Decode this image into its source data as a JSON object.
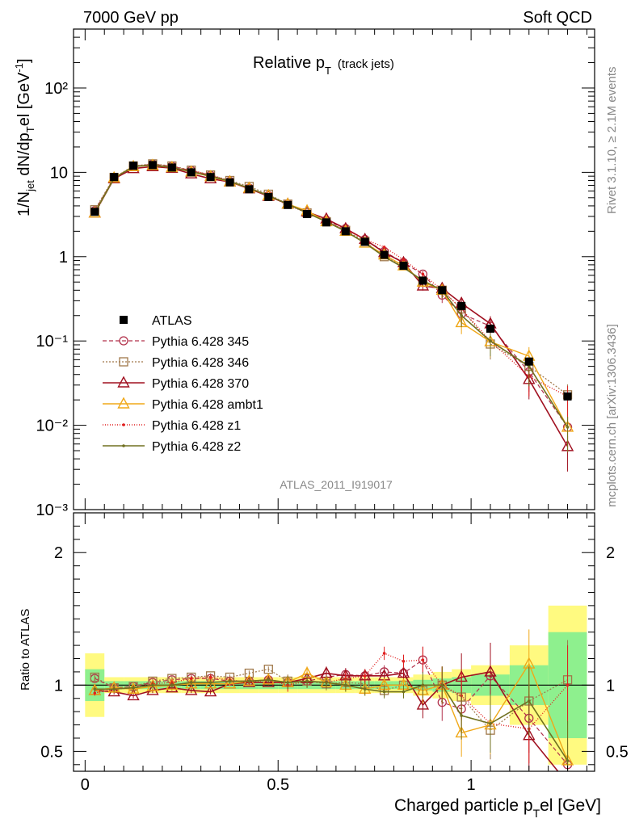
{
  "header": {
    "left": "7000 GeV pp",
    "right": "Soft QCD"
  },
  "side_text": {
    "rivet": "Rivet 3.1.10, ≥ 2.1M events",
    "mcplots": "mcplots.cern.ch [arXiv:1306.3436]"
  },
  "colors": {
    "atlas": "#000000",
    "p345": "#b2324c",
    "p346": "#a0784a",
    "p370": "#a01020",
    "ambt1": "#f0a818",
    "z1": "#e02020",
    "z2": "#707020",
    "band_inner": "#8ef08e",
    "band_outer": "#fffa80"
  },
  "chart_data": [
    {
      "type": "line",
      "title": "Relative p",
      "title_sub": "T",
      "title_suffix": "(track jets)",
      "ylabel_parts": [
        "1/N",
        "jet",
        " dN/dp",
        "T",
        "el [GeV",
        "-1",
        "]"
      ],
      "yscale": "log",
      "ylim": [
        0.001,
        500
      ],
      "xlim": [
        -0.03,
        1.32
      ],
      "ytick_labels": [
        "10⁻³",
        "10⁻²",
        "10⁻¹",
        "1",
        "10",
        "10²"
      ],
      "analysis_label": "ATLAS_2011_I919017",
      "legend_position": "center-left",
      "x": [
        0.025,
        0.075,
        0.125,
        0.175,
        0.225,
        0.275,
        0.325,
        0.375,
        0.425,
        0.475,
        0.525,
        0.575,
        0.625,
        0.675,
        0.725,
        0.775,
        0.825,
        0.875,
        0.925,
        0.975,
        1.05,
        1.15,
        1.25
      ],
      "series": [
        {
          "key": "atlas",
          "name": "ATLAS",
          "values": [
            3.4,
            8.8,
            12.0,
            12.2,
            11.4,
            10.0,
            8.8,
            7.6,
            6.3,
            5.1,
            4.1,
            3.2,
            2.55,
            2.0,
            1.5,
            1.05,
            0.78,
            0.52,
            0.4,
            0.26,
            0.14,
            0.057,
            0.022
          ]
        },
        {
          "key": "p345",
          "name": "Pythia 6.428 345",
          "values": [
            3.5,
            8.6,
            11.8,
            12.5,
            11.8,
            10.5,
            9.2,
            7.8,
            6.5,
            5.3,
            4.2,
            3.3,
            2.7,
            2.15,
            1.6,
            1.15,
            0.85,
            0.62,
            0.35,
            0.21,
            0.15,
            0.043,
            0.0095
          ]
        },
        {
          "key": "p346",
          "name": "Pythia 6.428 346",
          "values": [
            3.6,
            8.7,
            11.9,
            12.6,
            11.9,
            10.6,
            9.3,
            8.0,
            6.8,
            5.5,
            4.2,
            3.3,
            2.6,
            2.05,
            1.52,
            1.0,
            0.78,
            0.5,
            0.4,
            0.24,
            0.092,
            0.05,
            0.023
          ]
        },
        {
          "key": "p370",
          "name": "Pythia 6.428 370",
          "values": [
            3.3,
            8.4,
            11.1,
            11.7,
            11.2,
            9.6,
            8.4,
            7.7,
            6.4,
            5.2,
            4.2,
            3.4,
            2.8,
            2.15,
            1.6,
            1.12,
            0.85,
            0.45,
            0.42,
            0.28,
            0.16,
            0.035,
            0.0056
          ]
        },
        {
          "key": "ambt1",
          "name": "Pythia 6.428 ambt1",
          "values": [
            3.3,
            8.6,
            11.7,
            12.1,
            11.4,
            10.1,
            8.9,
            7.7,
            6.5,
            5.3,
            4.2,
            3.5,
            2.6,
            2.0,
            1.45,
            1.05,
            0.78,
            0.5,
            0.4,
            0.165,
            0.098,
            0.066,
            0.0095
          ]
        },
        {
          "key": "z1",
          "name": "Pythia 6.428 z1",
          "values": [
            3.2,
            8.5,
            11.7,
            12.3,
            11.6,
            10.5,
            9.3,
            7.9,
            6.4,
            5.3,
            4.1,
            3.3,
            2.6,
            2.1,
            1.6,
            1.3,
            0.92,
            0.62,
            0.4,
            0.24,
            0.1,
            0.038,
            0.022
          ]
        },
        {
          "key": "z2",
          "name": "Pythia 6.428 z2",
          "values": [
            3.3,
            8.5,
            11.7,
            12.2,
            11.4,
            10.2,
            9.0,
            7.8,
            6.5,
            5.3,
            4.2,
            3.3,
            2.6,
            2.0,
            1.45,
            1.0,
            0.74,
            0.52,
            0.4,
            0.2,
            0.1,
            0.05,
            0.0095
          ]
        }
      ]
    },
    {
      "type": "line",
      "ylabel": "Ratio to ATLAS",
      "xlabel_parts": [
        "Charged particle p",
        "T",
        "el [GeV]"
      ],
      "ylim": [
        0.35,
        2.3
      ],
      "xlim": [
        -0.03,
        1.32
      ],
      "ytick_labels": [
        "0.5",
        "1",
        "2"
      ],
      "xtick_labels": [
        "0",
        "0.5",
        "1"
      ],
      "bin_edges": [
        0.0,
        0.05,
        0.1,
        0.15,
        0.2,
        0.25,
        0.3,
        0.35,
        0.4,
        0.45,
        0.5,
        0.55,
        0.6,
        0.65,
        0.7,
        0.75,
        0.8,
        0.85,
        0.9,
        0.95,
        1.0,
        1.1,
        1.2,
        1.3
      ],
      "band_inner_half": [
        0.12,
        0.03,
        0.03,
        0.03,
        0.03,
        0.03,
        0.03,
        0.03,
        0.03,
        0.03,
        0.03,
        0.03,
        0.03,
        0.03,
        0.03,
        0.03,
        0.03,
        0.04,
        0.05,
        0.06,
        0.08,
        0.15,
        0.4
      ],
      "band_outer_half": [
        0.24,
        0.06,
        0.06,
        0.06,
        0.06,
        0.06,
        0.06,
        0.06,
        0.06,
        0.06,
        0.06,
        0.06,
        0.06,
        0.06,
        0.06,
        0.06,
        0.06,
        0.08,
        0.1,
        0.12,
        0.15,
        0.3,
        0.6
      ],
      "series": [
        {
          "key": "p345",
          "name": "Pythia 6.428 345",
          "values": [
            1.05,
            0.98,
            0.99,
            1.02,
            1.04,
            1.05,
            1.05,
            1.03,
            1.03,
            1.04,
            1.02,
            1.03,
            1.06,
            1.08,
            1.07,
            1.1,
            1.09,
            1.19,
            0.87,
            0.82,
            1.07,
            0.75,
            0.4
          ]
        },
        {
          "key": "p346",
          "name": "Pythia 6.428 346",
          "values": [
            1.06,
            0.98,
            0.99,
            1.03,
            1.05,
            1.06,
            1.07,
            1.06,
            1.09,
            1.12,
            1.03,
            1.03,
            1.01,
            1.02,
            1.01,
            0.96,
            1.0,
            0.96,
            1.0,
            0.91,
            0.66,
            0.88,
            1.04
          ]
        },
        {
          "key": "p370",
          "name": "Pythia 6.428 370",
          "values": [
            0.96,
            0.95,
            0.92,
            0.96,
            0.98,
            0.96,
            0.95,
            1.01,
            1.02,
            1.02,
            1.02,
            1.05,
            1.09,
            1.07,
            1.07,
            1.07,
            1.09,
            0.85,
            1.0,
            1.06,
            1.1,
            0.62,
            0.26
          ]
        },
        {
          "key": "ambt1",
          "name": "Pythia 6.428 ambt1",
          "values": [
            0.96,
            0.98,
            0.97,
            0.99,
            1.0,
            1.01,
            1.01,
            1.01,
            1.03,
            1.04,
            1.02,
            1.09,
            1.02,
            1.0,
            0.97,
            1.0,
            1.0,
            0.96,
            1.0,
            0.64,
            0.7,
            1.16,
            0.43
          ]
        },
        {
          "key": "z1",
          "name": "Pythia 6.428 z1",
          "values": [
            0.94,
            0.97,
            0.98,
            1.01,
            1.02,
            1.05,
            1.06,
            1.04,
            1.02,
            1.04,
            1.0,
            1.03,
            1.02,
            1.05,
            1.07,
            1.24,
            1.18,
            1.19,
            1.0,
            0.92,
            0.71,
            0.67,
            1.0
          ]
        },
        {
          "key": "z2",
          "name": "Pythia 6.428 z2",
          "values": [
            0.97,
            0.97,
            0.98,
            1.0,
            1.0,
            1.02,
            1.02,
            1.03,
            1.03,
            1.04,
            1.02,
            1.03,
            1.02,
            1.0,
            0.97,
            0.95,
            0.95,
            1.0,
            1.0,
            0.77,
            0.71,
            0.88,
            0.43
          ]
        }
      ]
    }
  ]
}
